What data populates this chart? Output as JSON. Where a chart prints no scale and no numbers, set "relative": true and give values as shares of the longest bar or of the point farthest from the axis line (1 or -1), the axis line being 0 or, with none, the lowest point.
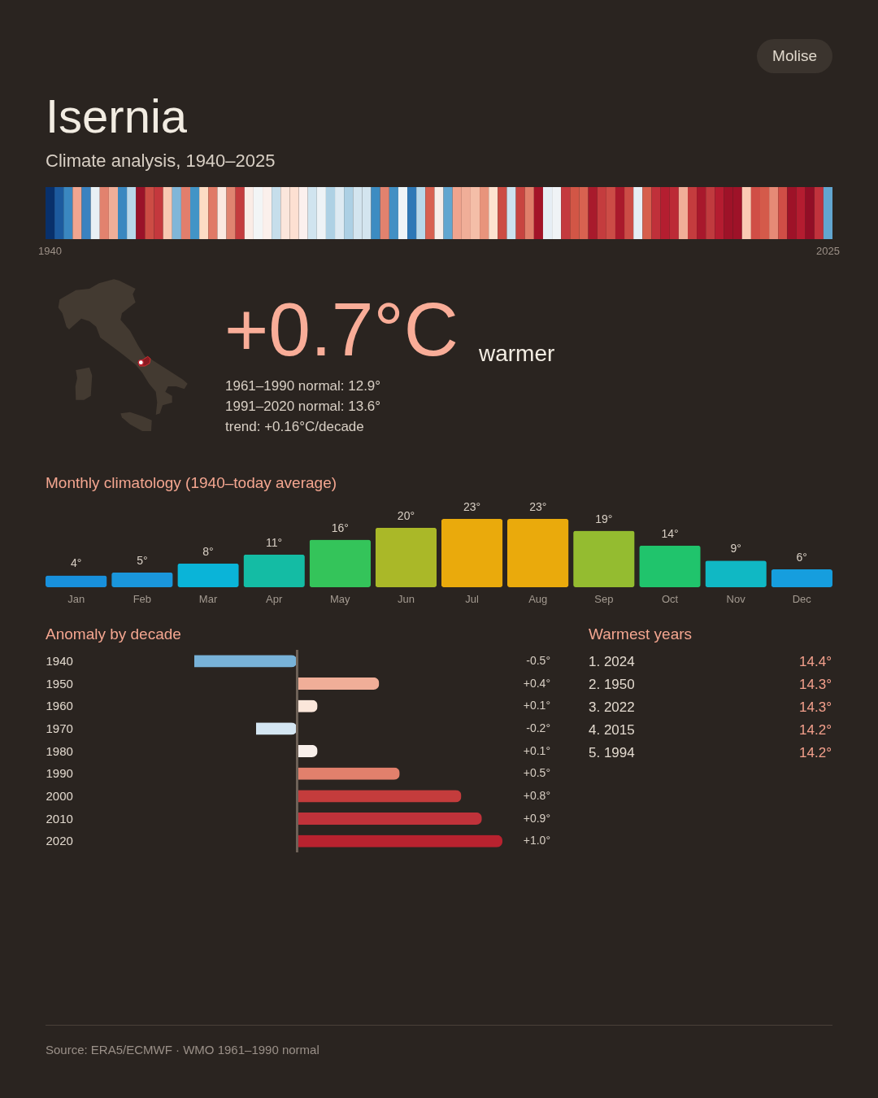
{
  "chart_data": [
    {
      "type": "bar",
      "title": "Isernia",
      "subtitle": "Climate analysis, 1940–2025",
      "annotations": [
        "Molise"
      ],
      "relative": true,
      "categories": [
        "1940",
        null,
        null,
        null,
        null,
        null,
        null,
        null,
        null,
        null,
        null,
        null,
        null,
        null,
        null,
        null,
        null,
        null,
        null,
        null,
        null,
        null,
        null,
        null,
        null,
        null,
        null,
        null,
        null,
        null,
        null,
        null,
        null,
        null,
        null,
        null,
        null,
        null,
        null,
        null,
        null,
        null,
        null,
        null,
        null,
        null,
        null,
        null,
        null,
        null,
        null,
        null,
        null,
        null,
        null,
        null,
        null,
        null,
        null,
        null,
        null,
        null,
        null,
        null,
        null,
        null,
        null,
        null,
        null,
        null,
        null,
        null,
        null,
        null,
        null,
        null,
        null,
        null,
        null,
        null,
        null,
        null,
        null,
        null,
        null,
        null,
        "2025"
      ],
      "values": [
        1,
        1,
        1,
        1,
        1,
        1,
        1,
        1,
        1,
        1,
        1,
        1,
        1,
        1,
        1,
        1,
        1,
        1,
        1,
        1,
        1,
        1,
        1,
        1,
        1,
        1,
        1,
        1,
        1,
        1,
        1,
        1,
        1,
        1,
        1,
        1,
        1,
        1,
        1,
        1,
        1,
        1,
        1,
        1,
        1,
        1,
        1,
        1,
        1,
        1,
        1,
        1,
        1,
        1,
        1,
        1,
        1,
        1,
        1,
        1,
        1,
        1,
        1,
        1,
        1,
        1,
        1,
        1,
        1,
        1,
        1,
        1,
        1,
        1,
        1,
        1,
        1,
        1,
        1,
        1,
        1,
        1,
        1,
        1,
        1,
        1,
        1
      ],
      "colors": [
        "#08306b",
        "#1c5a9e",
        "#3a87c0",
        "#f0a590",
        "#3a82c0",
        "#e8f0f4",
        "#e2826e",
        "#f0ae98",
        "#3a88c0",
        "#b8d8ea",
        "#9a1229",
        "#cc4c44",
        "#c4383d",
        "#f8c8b2",
        "#80b6d8",
        "#e27e6c",
        "#4294c6",
        "#fddcc4",
        "#e07a66",
        "#fbe9e0",
        "#e08470",
        "#c43c3e",
        "#faece6",
        "#f2f5f6",
        "#fbf0ec",
        "#c6deeb",
        "#fbe6dc",
        "#fde0d2",
        "#fbf0ee",
        "#d0e4ef",
        "#eef3f6",
        "#aed1e4",
        "#ddeaf2",
        "#acd0e4",
        "#d3e5ef",
        "#d3e5ef",
        "#3c8cc2",
        "#e2826e",
        "#4290c4",
        "#eef4f7",
        "#2e78b6",
        "#b8d8ea",
        "#d86050",
        "#f8ede8",
        "#62a6d0",
        "#f0a48e",
        "#f0ae98",
        "#f4bea8",
        "#e8947c",
        "#fde2d0",
        "#cc4c44",
        "#cce2ef",
        "#c84440",
        "#e07e6a",
        "#a31428",
        "#e6eef5",
        "#eff3f6",
        "#c43a3e",
        "#d25646",
        "#d86250",
        "#a81a2c",
        "#c43c3e",
        "#cc4c46",
        "#aa1a2c",
        "#cc4c46",
        "#e6eef5",
        "#d65e4c",
        "#c0303a",
        "#b41e30",
        "#bc2a36",
        "#f0ae98",
        "#c43c3e",
        "#a8182c",
        "#c03a3e",
        "#b41c30",
        "#9e1228",
        "#9e1228",
        "#fbcbb4",
        "#d04e46",
        "#d45a4a",
        "#e68a76",
        "#d04e46",
        "#9e1228",
        "#b41c30",
        "#920e26",
        "#c0323c",
        "#62a6d0"
      ]
    },
    {
      "type": "other",
      "annotations": [
        "+0.7°C",
        "warmer",
        "1961–1990 normal: 12.9°",
        "1991–2020 normal: 13.6°",
        "trend: +0.16°C/decade"
      ]
    },
    {
      "type": "bar",
      "title": "Monthly climatology (1940–today average)",
      "categories": [
        "Jan",
        "Feb",
        "Mar",
        "Apr",
        "May",
        "Jun",
        "Jul",
        "Aug",
        "Sep",
        "Oct",
        "Nov",
        "Dec"
      ],
      "values": [
        4,
        5,
        8,
        11,
        16,
        20,
        23,
        23,
        19,
        14,
        9,
        6
      ],
      "value_labels": [
        "4°",
        "5°",
        "8°",
        "11°",
        "16°",
        "20°",
        "23°",
        "23°",
        "19°",
        "14°",
        "9°",
        "6°"
      ],
      "colors": [
        "#1890dc",
        "#1a96dc",
        "#0ab4d8",
        "#14bca4",
        "#34c45a",
        "#aab828",
        "#eaaa0c",
        "#eaaa0c",
        "#94bc30",
        "#20c46c",
        "#10b8c4",
        "#169ede"
      ]
    },
    {
      "type": "bar",
      "orientation": "horizontal",
      "title": "Anomaly by decade",
      "categories": [
        "1940",
        "1950",
        "1960",
        "1970",
        "1980",
        "1990",
        "2000",
        "2010",
        "2020"
      ],
      "values": [
        -0.5,
        0.4,
        0.1,
        -0.2,
        0.1,
        0.5,
        0.8,
        0.9,
        1.0
      ],
      "value_labels": [
        "-0.5°",
        "+0.4°",
        "+0.1°",
        "-0.2°",
        "+0.1°",
        "+0.5°",
        "+0.8°",
        "+0.9°",
        "+1.0°"
      ],
      "colors": [
        "#78b2d8",
        "#f0ae98",
        "#fbe6da",
        "#d4e6f2",
        "#f8efea",
        "#e2806c",
        "#c43c3c",
        "#c0323a",
        "#b8222f"
      ],
      "ref_lines": [
        {
          "axis": "x",
          "value": 0,
          "color": "#6e6258"
        }
      ]
    },
    {
      "type": "other",
      "title": "Warmest years",
      "annotations": [
        "1. 2024",
        "14.4°",
        "2. 1950",
        "14.3°",
        "3. 2022",
        "14.3°",
        "4. 2015",
        "14.2°",
        "5. 1994",
        "14.2°"
      ]
    },
    {
      "type": "other",
      "annotations": [
        "Source: ERA5/ECMWF · WMO 1961–1990 normal"
      ]
    }
  ]
}
